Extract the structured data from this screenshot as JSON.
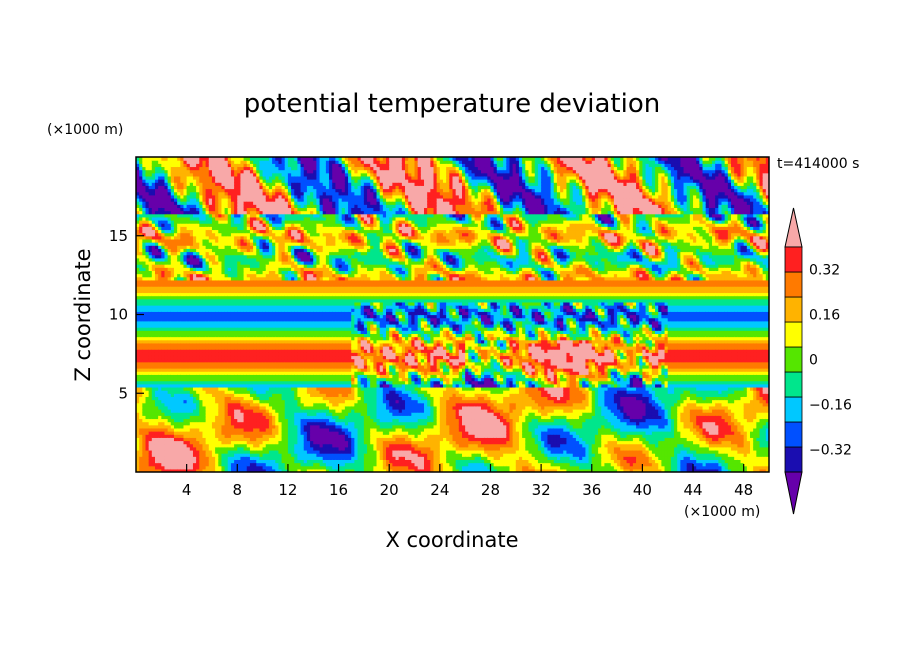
{
  "chart_data": {
    "type": "heatmap",
    "title": "potential temperature deviation",
    "xlabel": "X coordinate",
    "ylabel": "Z coordinate",
    "x_unit": "(×1000 m)",
    "y_unit": "(×1000 m)",
    "time_label": "t=414000 s",
    "xlim": [
      0,
      50
    ],
    "ylim": [
      0,
      20
    ],
    "x_ticks": [
      4,
      8,
      12,
      16,
      20,
      24,
      28,
      32,
      36,
      40,
      44,
      48
    ],
    "y_ticks": [
      5,
      10,
      15
    ],
    "colorbar": {
      "levels": [
        -0.4,
        -0.32,
        -0.24,
        -0.16,
        -0.08,
        0,
        0.08,
        0.16,
        0.24,
        0.32,
        0.4
      ],
      "tick_labels": [
        {
          "value": 0.32,
          "label": "0.32"
        },
        {
          "value": 0.16,
          "label": "0.16"
        },
        {
          "value": 0,
          "label": "0"
        },
        {
          "value": -0.16,
          "label": "−0.16"
        },
        {
          "value": -0.32,
          "label": "−0.32"
        }
      ],
      "colors": [
        "#6600aa",
        "#1a0db0",
        "#0050ff",
        "#00c8ff",
        "#00e68c",
        "#55e600",
        "#ffff00",
        "#ffb300",
        "#ff7a00",
        "#ff2020",
        "#f8a8a8"
      ]
    }
  }
}
